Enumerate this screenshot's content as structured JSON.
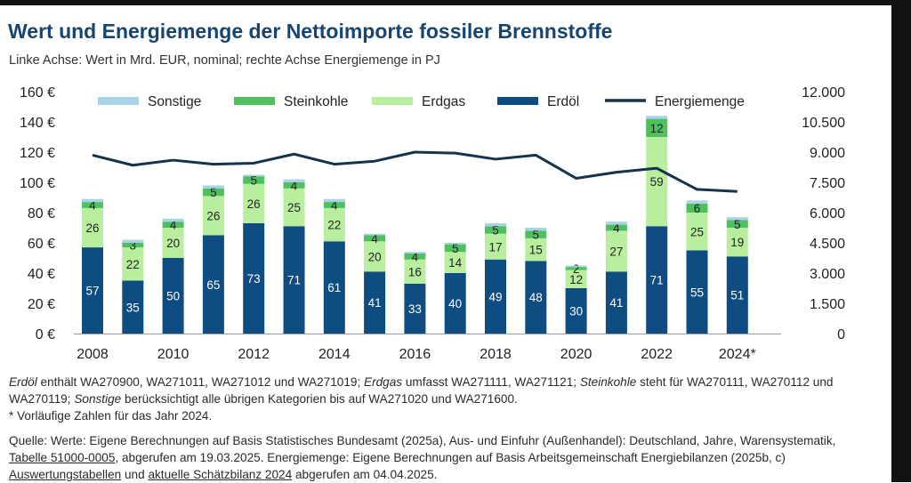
{
  "title": "Wert und Energiemenge der Nettoimporte fossiler Brennstoffe",
  "subtitle": "Linke Achse: Wert in Mrd. EUR, nominal; rechte Achse Energiemenge in PJ",
  "chart_data": {
    "type": "bar",
    "stacked": true,
    "categories": [
      "2008",
      "2009",
      "2010",
      "2011",
      "2012",
      "2013",
      "2014",
      "2015",
      "2016",
      "2017",
      "2018",
      "2019",
      "2020",
      "2021",
      "2022",
      "2023",
      "2024*"
    ],
    "x_tick_labels": [
      "2008",
      "2010",
      "2012",
      "2014",
      "2016",
      "2018",
      "2020",
      "2022",
      "2024*"
    ],
    "series": [
      {
        "name": "Erdöl",
        "color": "#0f4c81",
        "label_color": "#ffffff",
        "values": [
          57,
          35,
          50,
          65,
          73,
          71,
          61,
          41,
          33,
          40,
          49,
          48,
          30,
          41,
          71,
          55,
          51
        ]
      },
      {
        "name": "Erdgas",
        "color": "#b9ee9e",
        "label_color": "#222222",
        "values": [
          26,
          22,
          20,
          26,
          26,
          25,
          22,
          20,
          16,
          14,
          17,
          15,
          12,
          27,
          59,
          25,
          19
        ]
      },
      {
        "name": "Steinkohle",
        "color": "#4fbf60",
        "label_color": "#222222",
        "values": [
          4,
          3,
          4,
          5,
          5,
          4,
          4,
          4,
          4,
          5,
          5,
          5,
          2,
          4,
          12,
          6,
          5
        ]
      },
      {
        "name": "Sonstige",
        "color": "#a9d4e8",
        "label_color": "#222222",
        "values": [
          2,
          2,
          2,
          2,
          1,
          2,
          2,
          1,
          1,
          1,
          2,
          2,
          1,
          2,
          2,
          2,
          2
        ]
      }
    ],
    "line": {
      "name": "Energiemenge",
      "color": "#13344f",
      "axis": "right",
      "values": [
        8850,
        8350,
        8600,
        8400,
        8450,
        8900,
        8400,
        8550,
        9000,
        8950,
        8650,
        8850,
        7700,
        8000,
        8200,
        7150,
        7050
      ]
    },
    "legend_order": [
      "Sonstige",
      "Steinkohle",
      "Erdgas",
      "Erdöl",
      "Energiemenge"
    ],
    "legend_position": "top",
    "y_left": {
      "min": 0,
      "max": 160,
      "ticks": [
        "0 €",
        "20 €",
        "40 €",
        "60 €",
        "80 €",
        "100 €",
        "120 €",
        "140 €",
        "160 €"
      ]
    },
    "y_right": {
      "min": 0,
      "max": 12000,
      "ticks": [
        "0",
        "1.500",
        "3.000",
        "4.500",
        "6.000",
        "7.500",
        "9.000",
        "10.500",
        "12.000"
      ]
    },
    "grid": false
  },
  "notes": {
    "def_erdoel": "Erdöl",
    "def_erdoel_text": " enthält WA270900, WA271011, WA271012 und WA271019; ",
    "def_erdgas": "Erdgas",
    "def_erdgas_text": " umfasst WA271111, WA271121; ",
    "def_steinkohle": "Steinkohle",
    "def_steinkohle_text": " steht für WA270111, WA270112 und WA270119; ",
    "def_sonstige": "Sonstige",
    "def_sonstige_text": " berücksichtigt alle übrigen Kategorien bis auf WA271020 und WA271600.",
    "prelim": "* Vorläufige Zahlen für das Jahr 2024.",
    "source_a": "Quelle: Werte: Eigene Berechnungen auf Basis Statistisches Bundesamt (2025a), Aus- und Einfuhr (Außenhandel): Deutschland, Jahre, Warensystematik, ",
    "source_link1": "Tabelle 51000-0005",
    "source_b": ", abgerufen am 19.03.2025. Energiemenge: Eigene Berechnungen auf Basis Arbeitsgemeinschaft Energiebilanzen (2025b, c) ",
    "source_link2": "Auswertungstabellen",
    "source_c": " und ",
    "source_link3": "aktuelle Schätzbilanz 2024",
    "source_d": " abgerufen am 04.04.2025."
  }
}
